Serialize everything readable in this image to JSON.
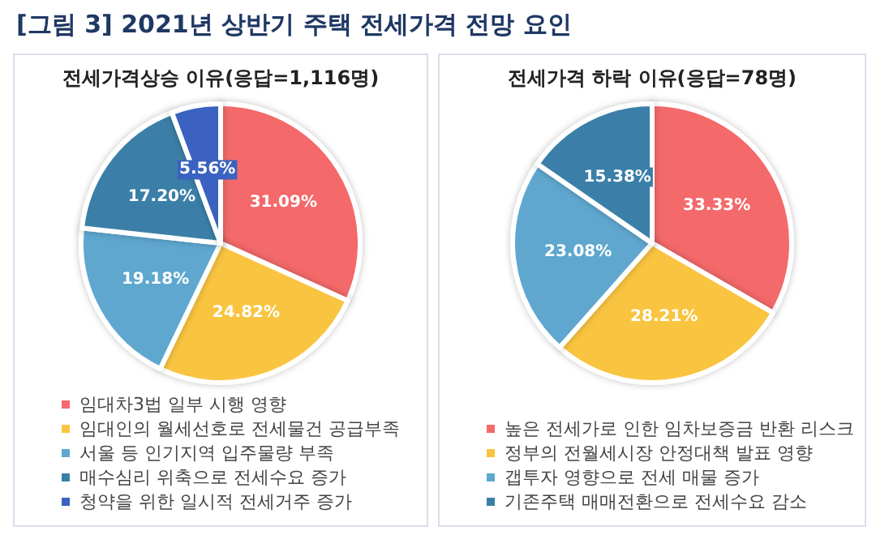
{
  "chart_data": [
    {
      "type": "pie",
      "title": "[그림 3] 2021년 상반기 주택 전세가격 전망 요인",
      "subtitle": "전세가격상승 이유(응답=1,116명)",
      "categories": [
        "임대차3법 일부 시행 영향",
        "임대인의 월세선호로 전세물건 공급부족",
        "서울 등 인기지역 입주물량 부족",
        "매수심리 위축으로 전세수요 증가",
        "청약을 위한 일시적 전세거주 증가"
      ],
      "values": [
        31.09,
        24.82,
        19.18,
        17.2,
        5.56
      ],
      "value_labels": [
        "31.09%",
        "24.82%",
        "19.18%",
        "17.20%",
        "5.56%"
      ],
      "colors": [
        "#f4696b",
        "#f9c440",
        "#5ea7cf",
        "#3a7fa8",
        "#3a62c0"
      ],
      "legend": "bottom"
    },
    {
      "type": "pie",
      "title": "전세가격 하락 이유(응답=78명)",
      "categories": [
        "높은 전세가로 인한 임차보증금 반환 리스크",
        "정부의 전월세시장 안정대책 발표 영향",
        "갭투자 영향으로 전세 매물 증가",
        "기존주택 매매전환으로 전세수요 감소"
      ],
      "values": [
        33.33,
        28.21,
        23.08,
        15.38
      ],
      "value_labels": [
        "33.33%",
        "28.21%",
        "23.08%",
        "15.38%"
      ],
      "colors": [
        "#f4696b",
        "#f9c440",
        "#5ea7cf",
        "#3a7fa8"
      ],
      "legend": "bottom"
    }
  ]
}
